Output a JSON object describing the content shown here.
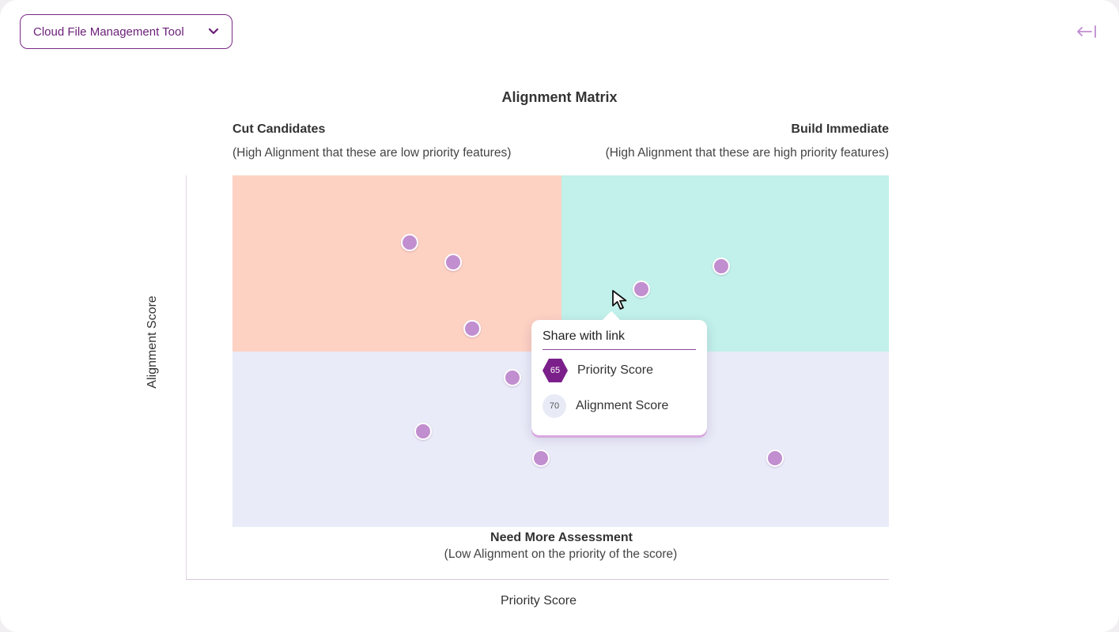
{
  "header": {
    "product_select": {
      "value": "Cloud File Management Tool",
      "icon": "chevron-down-icon"
    },
    "collapse_icon": "arrow-left-to-bar-icon"
  },
  "chart": {
    "title": "Alignment Matrix",
    "quadrants": {
      "top_left": {
        "title": "Cut Candidates",
        "subtitle": "(High Alignment that these are low priority features)",
        "color": "#fdd2c3"
      },
      "top_right": {
        "title": "Build Immediate",
        "subtitle": "(High Alignment that these are high priority features)",
        "color": "#c1f1ea"
      },
      "bottom": {
        "title": "Need More Assessment",
        "subtitle": "(Low Alignment on the priority of the score)",
        "color": "#e9ebf8"
      }
    },
    "xlabel": "Priority Score",
    "ylabel": "Alignment Score",
    "point_color": "#c18ecf"
  },
  "tooltip": {
    "title": "Share with link",
    "priority": {
      "value": "65",
      "label": "Priority Score",
      "color": "#7b1f8a"
    },
    "alignment": {
      "value": "70",
      "label": "Alignment Score"
    }
  },
  "chart_data": {
    "type": "scatter",
    "title": "Alignment Matrix",
    "xlabel": "Priority Score",
    "ylabel": "Alignment Score",
    "xlim": [
      0,
      100
    ],
    "ylim": [
      0,
      100
    ],
    "points": [
      {
        "x": 27,
        "y": 81
      },
      {
        "x": 33.6,
        "y": 75.3
      },
      {
        "x": 36.5,
        "y": 56.5
      },
      {
        "x": 62.3,
        "y": 67.6
      },
      {
        "x": 74.4,
        "y": 74.2
      },
      {
        "x": 42.7,
        "y": 42.5
      },
      {
        "x": 29,
        "y": 27.2
      },
      {
        "x": 47,
        "y": 19.6
      },
      {
        "x": 82.7,
        "y": 19.6
      }
    ]
  }
}
